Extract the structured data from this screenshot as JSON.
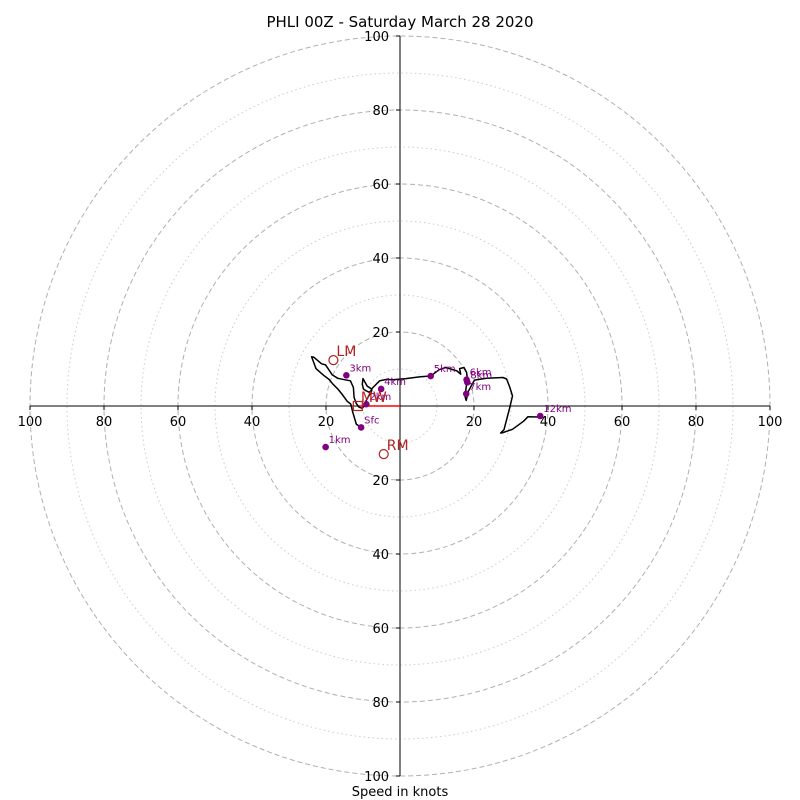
{
  "chart_data": {
    "type": "line",
    "title": "PHLI 00Z - Saturday March 28 2020",
    "xlabel": "Speed in knots",
    "xlim": [
      -100,
      100
    ],
    "ylim": [
      -100,
      100
    ],
    "major_rings": [
      20,
      40,
      60,
      80,
      100
    ],
    "minor_rings": [
      10,
      30,
      50,
      70,
      90
    ],
    "tick_labels": [
      "20",
      "40",
      "60",
      "80",
      "100"
    ],
    "colors": {
      "hodograph": "#000000",
      "height_markers": "#800080",
      "motion_markers": "#b22222",
      "shear_line": "#ff0000",
      "rings": "#b0b0b0"
    },
    "hodograph": {
      "name": "",
      "points": [
        [
          -10.5,
          -5.8
        ],
        [
          -11.8,
          -4.9
        ],
        [
          -12.8,
          -1.5
        ],
        [
          -13.3,
          0.5
        ],
        [
          -14.3,
          1.3
        ],
        [
          -15.5,
          3.0
        ],
        [
          -16.8,
          4.6
        ],
        [
          -18.1,
          5.9
        ],
        [
          -19.2,
          7.2
        ],
        [
          -20.5,
          8.2
        ],
        [
          -21.8,
          9.3
        ],
        [
          -22.7,
          10.1
        ],
        [
          -23.9,
          13.3
        ],
        [
          -23.3,
          13.2
        ],
        [
          -21.2,
          11.4
        ],
        [
          -20.1,
          11.1
        ],
        [
          -18.3,
          8.4
        ],
        [
          -16.8,
          7.5
        ],
        [
          -15.0,
          7.1
        ],
        [
          -13.4,
          6.8
        ],
        [
          -12.6,
          5.0
        ],
        [
          -12.4,
          2.3
        ],
        [
          -11.8,
          0.7
        ],
        [
          -11.1,
          -0.3
        ],
        [
          -10.3,
          -0.6
        ],
        [
          -9.7,
          -0.1
        ],
        [
          -9.1,
          1.5
        ],
        [
          -8.4,
          2.8
        ],
        [
          -7.8,
          3.6
        ],
        [
          -7.6,
          4.4
        ],
        [
          -8.3,
          3.7
        ],
        [
          -9.3,
          4.2
        ],
        [
          -9.9,
          4.6
        ],
        [
          -10.2,
          5.9
        ],
        [
          -10.0,
          7.4
        ],
        [
          -8.9,
          5.4
        ],
        [
          -7.7,
          4.6
        ],
        [
          -5.5,
          6.8
        ],
        [
          -3.6,
          7.2
        ],
        [
          -2.0,
          7.1
        ],
        [
          1.6,
          7.4
        ],
        [
          5.5,
          7.9
        ],
        [
          8.3,
          8.1
        ],
        [
          10.6,
          9.8
        ],
        [
          12.3,
          10.4
        ],
        [
          15.4,
          9.5
        ],
        [
          16.4,
          8.6
        ],
        [
          16.1,
          10.1
        ],
        [
          17.3,
          10.4
        ],
        [
          18.0,
          9.1
        ],
        [
          18.2,
          7.2
        ],
        [
          17.9,
          5.1
        ],
        [
          17.7,
          3.8
        ],
        [
          17.6,
          2.5
        ],
        [
          17.9,
          1.5
        ],
        [
          18.4,
          3.8
        ],
        [
          20.1,
          7.0
        ],
        [
          23.4,
          7.5
        ],
        [
          27.8,
          7.7
        ],
        [
          28.8,
          7.3
        ],
        [
          29.7,
          5.0
        ],
        [
          30.4,
          2.7
        ],
        [
          29.6,
          -0.7
        ],
        [
          28.8,
          -3.7
        ],
        [
          28.1,
          -6.4
        ],
        [
          27.2,
          -7.3
        ],
        [
          27.5,
          -7.3
        ],
        [
          30.4,
          -6.3
        ],
        [
          33.4,
          -4.1
        ],
        [
          34.6,
          -2.9
        ],
        [
          38.8,
          -3.0
        ]
      ]
    },
    "height_markers": [
      {
        "label": "Sfc",
        "u": -10.5,
        "v": -5.8
      },
      {
        "label": "1km",
        "u": -20.1,
        "v": -11.1
      },
      {
        "label": "2km",
        "u": -9.1,
        "v": 0.5
      },
      {
        "label": "3km",
        "u": -14.5,
        "v": 8.3
      },
      {
        "label": "4km",
        "u": -5.1,
        "v": 4.6
      },
      {
        "label": "5km",
        "u": 8.3,
        "v": 8.1
      },
      {
        "label": "6km",
        "u": 18.0,
        "v": 7.1
      },
      {
        "label": "7km",
        "u": 17.9,
        "v": 3.3
      },
      {
        "label": "8km",
        "u": 18.2,
        "v": 6.4
      },
      {
        "label": "12km",
        "u": 37.9,
        "v": -2.7
      }
    ],
    "motion_markers": [
      {
        "label": "LM",
        "u": -18.0,
        "v": 12.4,
        "shape": "circle"
      },
      {
        "label": "RM",
        "u": -4.4,
        "v": -13.0,
        "shape": "circle"
      },
      {
        "label": "MW",
        "u": -11.4,
        "v": 0.0,
        "shape": "square"
      }
    ],
    "shear_line": {
      "from": [
        0,
        0
      ],
      "to": [
        -11.4,
        0
      ]
    }
  }
}
